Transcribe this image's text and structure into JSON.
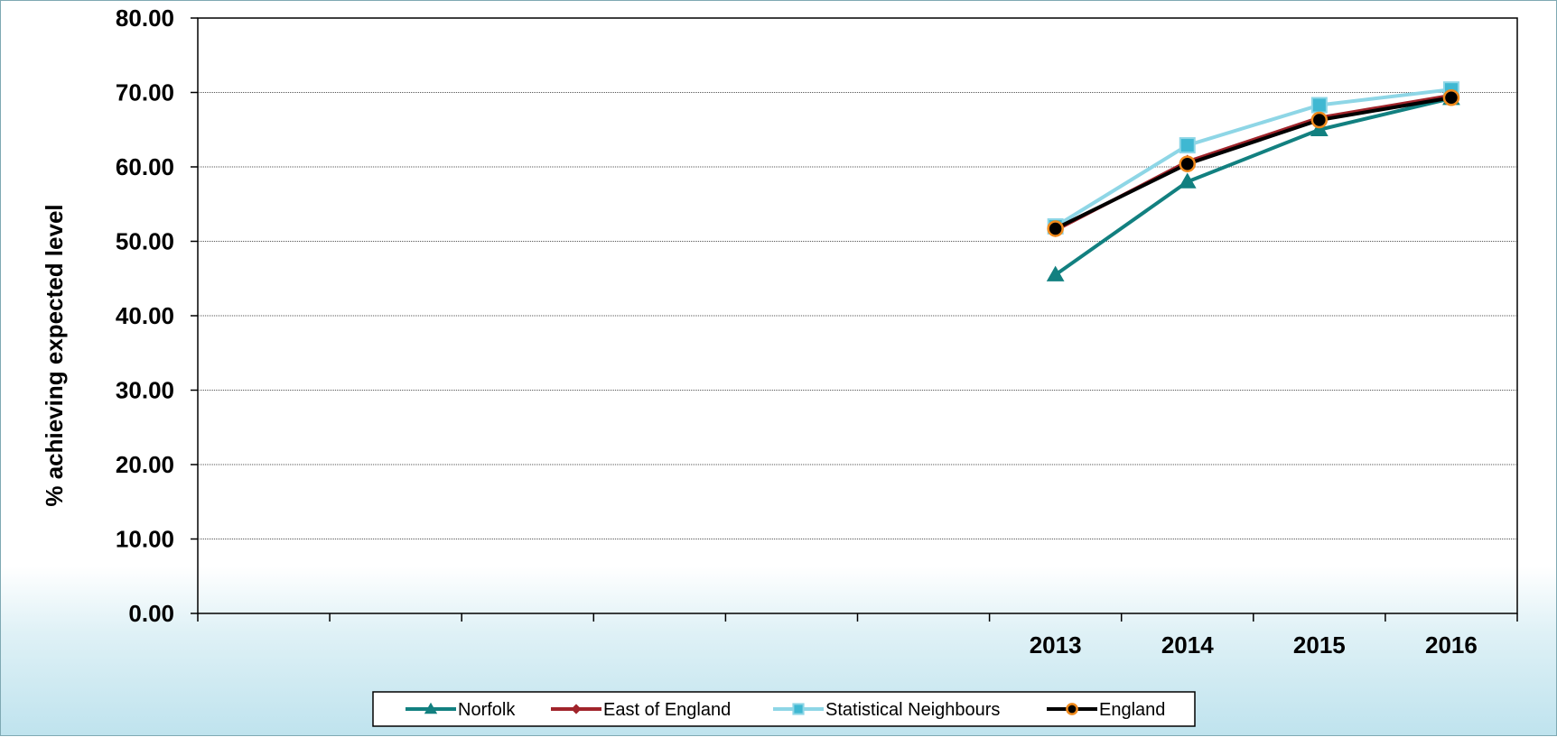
{
  "chart_data": {
    "type": "line",
    "title": "",
    "xlabel": "",
    "ylabel": "% achieving expected level",
    "ylim": [
      0,
      80
    ],
    "yticks": [
      "0.00",
      "10.00",
      "20.00",
      "30.00",
      "40.00",
      "50.00",
      "60.00",
      "70.00",
      "80.00"
    ],
    "slot_count": 10,
    "categories": [
      "",
      "",
      "",
      "",
      "",
      "",
      "2013",
      "2014",
      "2015",
      "2016"
    ],
    "grid": true,
    "legend_position": "bottom",
    "series": [
      {
        "name": "Norfolk",
        "color": "#128080",
        "marker": "triangle",
        "values": [
          null,
          null,
          null,
          null,
          null,
          null,
          45.5,
          58.0,
          65.0,
          69.2
        ]
      },
      {
        "name": "East of England",
        "color": "#a0242b",
        "marker": "diamond",
        "values": [
          null,
          null,
          null,
          null,
          null,
          null,
          51.5,
          60.7,
          66.6,
          69.6
        ]
      },
      {
        "name": "Statistical Neighbours",
        "color": "#8ed6e6",
        "marker": "square",
        "values": [
          null,
          null,
          null,
          null,
          null,
          null,
          52.0,
          62.9,
          68.3,
          70.4
        ]
      },
      {
        "name": "England",
        "color": "#000000",
        "marker": "circle",
        "values": [
          null,
          null,
          null,
          null,
          null,
          null,
          51.7,
          60.4,
          66.3,
          69.3
        ]
      }
    ]
  }
}
